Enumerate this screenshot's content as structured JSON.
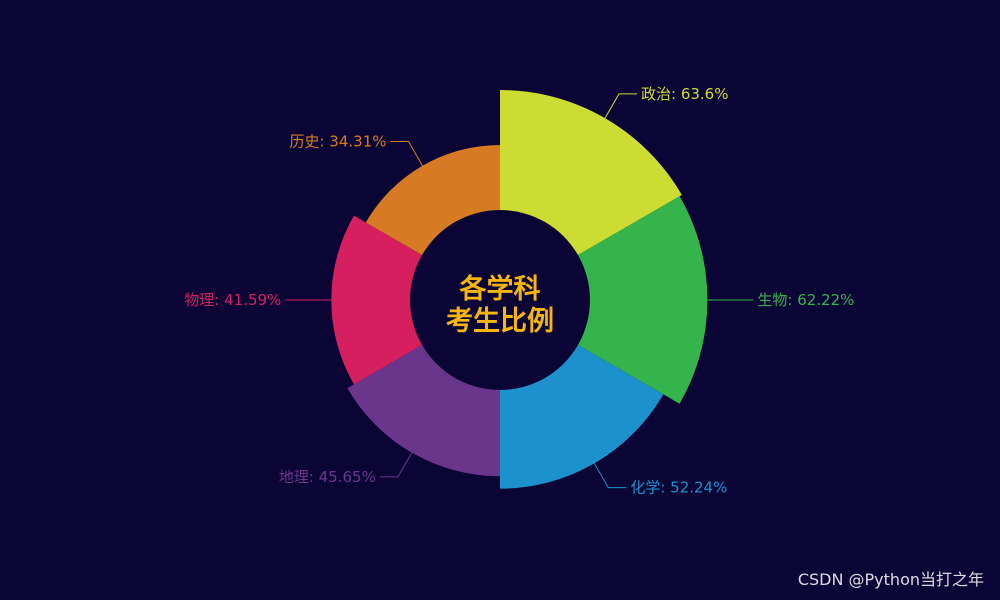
{
  "chart_data": {
    "type": "pie",
    "variant": "rose-donut",
    "title_lines": [
      "各学科",
      "考生比例"
    ],
    "categories": [
      "政治",
      "生物",
      "化学",
      "地理",
      "物理",
      "历史"
    ],
    "values": [
      63.6,
      62.22,
      52.24,
      45.65,
      41.59,
      34.31
    ],
    "labels": [
      "政治: 63.6%",
      "生物: 62.22%",
      "化学: 52.24%",
      "地理: 45.65%",
      "物理: 41.59%",
      "历史: 34.31%"
    ],
    "colors": [
      "#cddc33",
      "#36b44c",
      "#1d91cc",
      "#6a368c",
      "#d61f5e",
      "#d67a24"
    ],
    "legend": "none",
    "background": "#0b0535",
    "title_color": "#f5b50a"
  },
  "watermark": "CSDN @Python当打之年"
}
